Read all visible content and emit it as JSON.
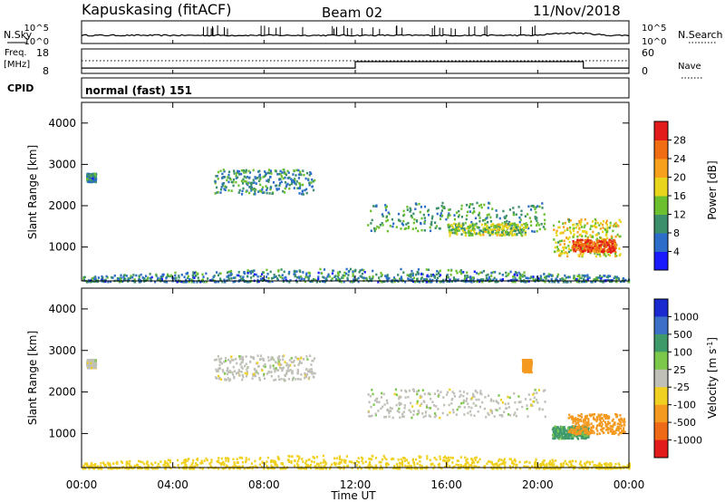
{
  "header": {
    "station": "Kapuskasing (fitACF)",
    "beam": "Beam 02",
    "date": "11/Nov/2018"
  },
  "params": {
    "nsky_label": "N.Sky",
    "nsearch_label": "N.Search",
    "noise_ticks_left": [
      "10^5",
      "10^0"
    ],
    "noise_ticks_right": [
      "10^5",
      "10^0"
    ],
    "freq_label": "Freq.",
    "freq_unit": "[MHz]",
    "freq_ticks": [
      "18",
      "8"
    ],
    "nave_label": "Nave",
    "nave_ticks": [
      "60",
      "0"
    ],
    "cpid_label": "CPID",
    "cpid_value": "normal (fast) 151"
  },
  "axes": {
    "ylabel": "Slant Range [km]",
    "xlabel": "Time UT",
    "y_ticks": [
      "1000",
      "2000",
      "3000",
      "4000"
    ],
    "x_ticks": [
      "00:00",
      "04:00",
      "08:00",
      "12:00",
      "16:00",
      "20:00",
      "00:00"
    ]
  },
  "colorbars": {
    "power": {
      "label": "Power [dB]",
      "ticks": [
        "4",
        "8",
        "12",
        "16",
        "20",
        "24",
        "28"
      ],
      "colors": [
        "#1a1aff",
        "#2b6dc8",
        "#3b8f6a",
        "#6cc030",
        "#e8d51c",
        "#f7a01d",
        "#f06d13",
        "#e21b1b"
      ]
    },
    "velocity": {
      "label": "Velocity [m s",
      "label_exp": "-1",
      "label_end": "]",
      "ticks": [
        "1000",
        "500",
        "100",
        "25",
        "-25",
        "-100",
        "-500",
        "-1000"
      ],
      "colors": [
        "#1a2ad0",
        "#3b6fc8",
        "#3f9a6a",
        "#7cc84a",
        "#c0c0b8",
        "#f0d020",
        "#f59a20",
        "#ef6a16",
        "#e21b1b"
      ]
    }
  },
  "chart_data": [
    {
      "type": "line",
      "name": "noise",
      "x_range_hours": [
        0,
        24
      ],
      "ylim_log10": [
        0,
        5
      ]
    },
    {
      "type": "line",
      "name": "frequency",
      "x": [
        0,
        12,
        12,
        22,
        22,
        24
      ],
      "y": [
        10.2,
        10.2,
        12.8,
        12.8,
        10.2,
        10.2
      ],
      "ylim": [
        8,
        18
      ]
    },
    {
      "type": "scatter",
      "name": "power",
      "x_range_hours": [
        0,
        24
      ],
      "ylim": [
        180,
        4500
      ],
      "color_range_db": [
        0,
        30
      ],
      "regions": [
        {
          "x": [
            0.2,
            0.6
          ],
          "y": [
            2600,
            2800
          ],
          "value": 8
        },
        {
          "x": [
            5.8,
            10.2
          ],
          "y": [
            2300,
            2900
          ],
          "value": 9
        },
        {
          "x": [
            12.5,
            20.3
          ],
          "y": [
            1400,
            2100
          ],
          "value": 10
        },
        {
          "x": [
            16,
            19.5
          ],
          "y": [
            1300,
            1600
          ],
          "value": 14
        },
        {
          "x": [
            20.6,
            23.6
          ],
          "y": [
            800,
            1700
          ],
          "value": 16
        },
        {
          "x": [
            21.5,
            23.4
          ],
          "y": [
            900,
            1200
          ],
          "value": 26
        },
        {
          "x": [
            0,
            24
          ],
          "y": [
            180,
            500
          ],
          "value": 8
        }
      ]
    },
    {
      "type": "scatter",
      "name": "velocity",
      "x_range_hours": [
        0,
        24
      ],
      "ylim": [
        180,
        4500
      ],
      "color_range_ms": [
        -1000,
        1000
      ],
      "regions": [
        {
          "x": [
            0.2,
            0.6
          ],
          "y": [
            2600,
            2800
          ],
          "value": 0
        },
        {
          "x": [
            5.8,
            10.2
          ],
          "y": [
            2300,
            2900
          ],
          "value": 0
        },
        {
          "x": [
            12.5,
            20.3
          ],
          "y": [
            1400,
            2100
          ],
          "value": 0
        },
        {
          "x": [
            19.3,
            19.7
          ],
          "y": [
            2500,
            2800
          ],
          "value": -300
        },
        {
          "x": [
            20.6,
            22.2
          ],
          "y": [
            900,
            1200
          ],
          "value": 120
        },
        {
          "x": [
            21.3,
            23.8
          ],
          "y": [
            1000,
            1500
          ],
          "value": -200
        },
        {
          "x": [
            0,
            24
          ],
          "y": [
            180,
            500
          ],
          "value": -60
        }
      ]
    }
  ]
}
